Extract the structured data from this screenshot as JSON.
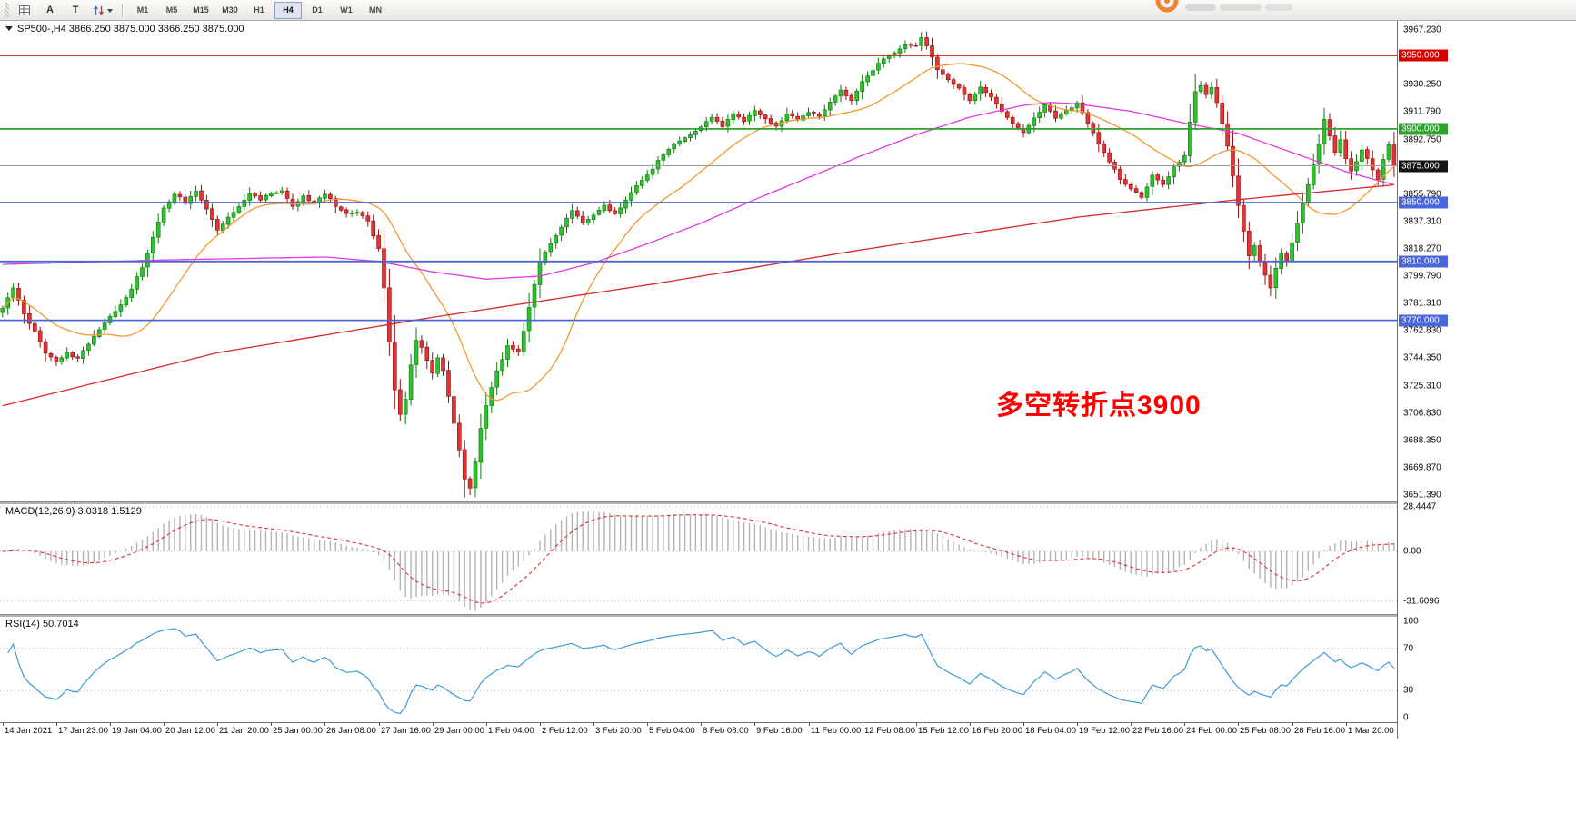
{
  "toolbar": {
    "buttons": [
      {
        "name": "cursor-button",
        "label": "A"
      },
      {
        "name": "text-button",
        "label": "T"
      }
    ],
    "timeframes": [
      {
        "label": "M1",
        "active": false
      },
      {
        "label": "M5",
        "active": false
      },
      {
        "label": "M15",
        "active": false
      },
      {
        "label": "M30",
        "active": false
      },
      {
        "label": "H1",
        "active": false
      },
      {
        "label": "H4",
        "active": true
      },
      {
        "label": "D1",
        "active": false
      },
      {
        "label": "W1",
        "active": false
      },
      {
        "label": "MN",
        "active": false
      }
    ]
  },
  "chart": {
    "symbol_display": "SP500-,H4  3866.250 3875.000 3866.250 3875.000",
    "annotation": {
      "text": "多空转折点3900",
      "color": "#ff0000"
    },
    "current_price": {
      "price": 3875.0,
      "label": "3875.000",
      "badge_bg": "#141414",
      "line_color": "#999999"
    },
    "levels": [
      {
        "price": 3950.0,
        "label": "3950.000",
        "color": "#d40000"
      },
      {
        "price": 3900.0,
        "label": "3900.000",
        "color": "#2fa12f"
      },
      {
        "price": 3850.0,
        "label": "3850.000",
        "color": "#4b66d9"
      },
      {
        "price": 3810.0,
        "label": "3810.000",
        "color": "#4b66d9"
      },
      {
        "price": 3770.0,
        "label": "3770.000",
        "color": "#4b66d9"
      }
    ],
    "price_ticks": [
      {
        "v": 3967.23,
        "label": "3967.230"
      },
      {
        "v": 3930.25,
        "label": "3930.250"
      },
      {
        "v": 3911.79,
        "label": "3911.790"
      },
      {
        "v": 3892.75,
        "label": "3892.750"
      },
      {
        "v": 3855.79,
        "label": "3855.790"
      },
      {
        "v": 3837.31,
        "label": "3837.310"
      },
      {
        "v": 3818.27,
        "label": "3818.270"
      },
      {
        "v": 3799.79,
        "label": "3799.790"
      },
      {
        "v": 3781.31,
        "label": "3781.310"
      },
      {
        "v": 3762.83,
        "label": "3762.830"
      },
      {
        "v": 3744.35,
        "label": "3744.350"
      },
      {
        "v": 3725.31,
        "label": "3725.310"
      },
      {
        "v": 3706.83,
        "label": "3706.830"
      },
      {
        "v": 3688.35,
        "label": "3688.350"
      },
      {
        "v": 3669.87,
        "label": "3669.870"
      },
      {
        "v": 3651.39,
        "label": "3651.390"
      }
    ],
    "colors": {
      "up": "#2fbf2f",
      "up_edge": "#0e7a0e",
      "down": "#e23434",
      "down_edge": "#8f1212",
      "ma_fast": "#f29a2e",
      "ma_mid": "#e23ae2",
      "ma_slow": "#d62b2b"
    }
  },
  "macd_panel": {
    "label": "MACD(12,26,9) 3.0318 1.5129",
    "axis": [
      {
        "v": 28.4447,
        "label": "28.4447"
      },
      {
        "v": 0,
        "label": "0.00"
      },
      {
        "v": -31.6096,
        "label": "-31.6096"
      }
    ],
    "histogram_color": "#b4b4b4",
    "signal_color": "#e03030"
  },
  "rsi_panel": {
    "label": "RSI(14) 50.7014",
    "axis": [
      {
        "v": 100,
        "label": "100"
      },
      {
        "v": 70,
        "label": "70"
      },
      {
        "v": 30,
        "label": "30"
      },
      {
        "v": 0,
        "label": "0"
      }
    ],
    "levels": [
      70,
      30
    ],
    "line_color": "#3c9cd7"
  },
  "time_axis": {
    "bars_per_label": 10,
    "labels": [
      "14 Jan 2021",
      "17 Jan 23:00",
      "19 Jan 04:00",
      "20 Jan 12:00",
      "21 Jan 20:00",
      "25 Jan 00:00",
      "26 Jan 08:00",
      "27 Jan 16:00",
      "29 Jan 00:00",
      "1 Feb 04:00",
      "2 Feb 12:00",
      "3 Feb 20:00",
      "5 Feb 04:00",
      "8 Feb 08:00",
      "9 Feb 16:00",
      "11 Feb 00:00",
      "12 Feb 08:00",
      "15 Feb 12:00",
      "16 Feb 20:00",
      "18 Feb 04:00",
      "19 Feb 12:00",
      "22 Feb 16:00",
      "24 Feb 00:00",
      "25 Feb 08:00",
      "26 Feb 16:00",
      "1 Mar 20:00"
    ]
  },
  "chart_data": {
    "type": "candlestick",
    "symbol": "SP500-",
    "timeframe": "H4",
    "bars": 260,
    "ohlc_current": {
      "open": 3866.25,
      "high": 3875.0,
      "low": 3866.25,
      "close": 3875.0
    },
    "y_range": [
      3647,
      3974
    ],
    "ma_fast_period": 20,
    "price_waypoints": [
      [
        0,
        3778
      ],
      [
        2,
        3792
      ],
      [
        4,
        3775
      ],
      [
        6,
        3762
      ],
      [
        8,
        3748
      ],
      [
        10,
        3742
      ],
      [
        12,
        3748
      ],
      [
        14,
        3744
      ],
      [
        16,
        3754
      ],
      [
        18,
        3764
      ],
      [
        20,
        3772
      ],
      [
        22,
        3780
      ],
      [
        24,
        3792
      ],
      [
        26,
        3806
      ],
      [
        28,
        3826
      ],
      [
        30,
        3846
      ],
      [
        32,
        3856
      ],
      [
        34,
        3850
      ],
      [
        36,
        3858
      ],
      [
        38,
        3846
      ],
      [
        40,
        3832
      ],
      [
        42,
        3840
      ],
      [
        44,
        3848
      ],
      [
        46,
        3856
      ],
      [
        48,
        3852
      ],
      [
        50,
        3856
      ],
      [
        52,
        3858
      ],
      [
        54,
        3848
      ],
      [
        56,
        3854
      ],
      [
        58,
        3850
      ],
      [
        60,
        3856
      ],
      [
        62,
        3848
      ],
      [
        64,
        3842
      ],
      [
        66,
        3844
      ],
      [
        68,
        3838
      ],
      [
        70,
        3818
      ],
      [
        71,
        3792
      ],
      [
        72,
        3756
      ],
      [
        73,
        3722
      ],
      [
        74,
        3706
      ],
      [
        75,
        3716
      ],
      [
        76,
        3740
      ],
      [
        77,
        3756
      ],
      [
        78,
        3752
      ],
      [
        79,
        3742
      ],
      [
        80,
        3734
      ],
      [
        81,
        3744
      ],
      [
        82,
        3736
      ],
      [
        83,
        3718
      ],
      [
        84,
        3700
      ],
      [
        85,
        3682
      ],
      [
        86,
        3662
      ],
      [
        87,
        3656
      ],
      [
        88,
        3674
      ],
      [
        89,
        3696
      ],
      [
        90,
        3712
      ],
      [
        92,
        3736
      ],
      [
        94,
        3752
      ],
      [
        96,
        3748
      ],
      [
        98,
        3778
      ],
      [
        100,
        3810
      ],
      [
        102,
        3822
      ],
      [
        104,
        3834
      ],
      [
        106,
        3844
      ],
      [
        108,
        3836
      ],
      [
        110,
        3842
      ],
      [
        112,
        3848
      ],
      [
        114,
        3842
      ],
      [
        116,
        3852
      ],
      [
        118,
        3862
      ],
      [
        120,
        3868
      ],
      [
        122,
        3878
      ],
      [
        124,
        3886
      ],
      [
        126,
        3892
      ],
      [
        128,
        3896
      ],
      [
        130,
        3902
      ],
      [
        132,
        3908
      ],
      [
        134,
        3902
      ],
      [
        136,
        3910
      ],
      [
        138,
        3905
      ],
      [
        140,
        3912
      ],
      [
        142,
        3907
      ],
      [
        144,
        3902
      ],
      [
        146,
        3910
      ],
      [
        148,
        3906
      ],
      [
        150,
        3912
      ],
      [
        152,
        3908
      ],
      [
        154,
        3918
      ],
      [
        156,
        3926
      ],
      [
        158,
        3920
      ],
      [
        160,
        3932
      ],
      [
        162,
        3940
      ],
      [
        164,
        3948
      ],
      [
        166,
        3952
      ],
      [
        168,
        3958
      ],
      [
        170,
        3956
      ],
      [
        171,
        3962
      ],
      [
        172,
        3957
      ],
      [
        173,
        3948
      ],
      [
        174,
        3940
      ],
      [
        176,
        3934
      ],
      [
        178,
        3928
      ],
      [
        180,
        3920
      ],
      [
        182,
        3928
      ],
      [
        184,
        3921
      ],
      [
        186,
        3912
      ],
      [
        188,
        3904
      ],
      [
        190,
        3898
      ],
      [
        192,
        3908
      ],
      [
        194,
        3916
      ],
      [
        196,
        3908
      ],
      [
        198,
        3912
      ],
      [
        200,
        3918
      ],
      [
        202,
        3904
      ],
      [
        204,
        3890
      ],
      [
        206,
        3878
      ],
      [
        208,
        3866
      ],
      [
        210,
        3860
      ],
      [
        212,
        3854
      ],
      [
        214,
        3868
      ],
      [
        216,
        3862
      ],
      [
        218,
        3874
      ],
      [
        220,
        3882
      ],
      [
        221,
        3905
      ],
      [
        222,
        3926
      ],
      [
        223,
        3930
      ],
      [
        224,
        3924
      ],
      [
        225,
        3928
      ],
      [
        226,
        3918
      ],
      [
        227,
        3904
      ],
      [
        228,
        3888
      ],
      [
        229,
        3868
      ],
      [
        230,
        3848
      ],
      [
        231,
        3830
      ],
      [
        232,
        3814
      ],
      [
        233,
        3820
      ],
      [
        234,
        3810
      ],
      [
        235,
        3800
      ],
      [
        236,
        3792
      ],
      [
        237,
        3806
      ],
      [
        238,
        3816
      ],
      [
        239,
        3810
      ],
      [
        240,
        3822
      ],
      [
        241,
        3836
      ],
      [
        242,
        3850
      ],
      [
        243,
        3862
      ],
      [
        244,
        3876
      ],
      [
        245,
        3890
      ],
      [
        246,
        3906
      ],
      [
        247,
        3896
      ],
      [
        248,
        3884
      ],
      [
        249,
        3892
      ],
      [
        250,
        3880
      ],
      [
        251,
        3872
      ],
      [
        252,
        3878
      ],
      [
        253,
        3886
      ],
      [
        254,
        3880
      ],
      [
        255,
        3872
      ],
      [
        256,
        3866
      ],
      [
        257,
        3880
      ],
      [
        258,
        3890
      ],
      [
        259,
        3875
      ]
    ],
    "ma_mid_waypoints": [
      [
        0,
        3808
      ],
      [
        30,
        3811
      ],
      [
        60,
        3813
      ],
      [
        70,
        3810
      ],
      [
        80,
        3803
      ],
      [
        90,
        3798
      ],
      [
        100,
        3800
      ],
      [
        110,
        3809
      ],
      [
        120,
        3822
      ],
      [
        130,
        3836
      ],
      [
        140,
        3852
      ],
      [
        150,
        3867
      ],
      [
        160,
        3882
      ],
      [
        170,
        3896
      ],
      [
        180,
        3908
      ],
      [
        190,
        3916
      ],
      [
        195,
        3918
      ],
      [
        200,
        3917
      ],
      [
        210,
        3912
      ],
      [
        220,
        3904
      ],
      [
        230,
        3897
      ],
      [
        240,
        3884
      ],
      [
        250,
        3871
      ],
      [
        259,
        3862
      ]
    ],
    "ma_slow_waypoints": [
      [
        0,
        3712
      ],
      [
        40,
        3748
      ],
      [
        80,
        3772
      ],
      [
        120,
        3794
      ],
      [
        160,
        3818
      ],
      [
        200,
        3840
      ],
      [
        230,
        3852
      ],
      [
        259,
        3862
      ]
    ],
    "indicators": {
      "macd": {
        "fast": 12,
        "slow": 26,
        "signal": 9,
        "current": [
          3.0318,
          1.5129
        ],
        "visible_range": [
          28.4447,
          -31.6096
        ]
      },
      "rsi": {
        "period": 14,
        "current": 50.7014,
        "range": [
          0,
          100
        ],
        "levels": [
          70,
          30
        ]
      }
    }
  }
}
